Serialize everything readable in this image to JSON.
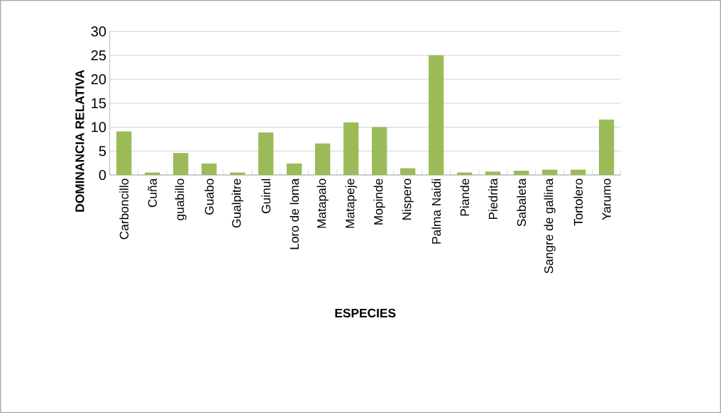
{
  "chart_data": {
    "type": "bar",
    "xlabel": "ESPECIES",
    "ylabel": "DOMINANCIA RELATIVA",
    "categories": [
      "Carboncillo",
      "Cuña",
      "guabillo",
      "Guabo",
      "Gualpitre",
      "Guinul",
      "Loro de loma",
      "Matapalo",
      "Matapeje",
      "Mopinde",
      "Nispero",
      "Palma Naidi",
      "Piande",
      "Piedrita",
      "Sabaleta",
      "Sangre de gallina",
      "Tortolero",
      "Yarumo"
    ],
    "values": [
      9.1,
      0.5,
      4.6,
      2.4,
      0.5,
      8.9,
      2.4,
      6.6,
      11.0,
      10.0,
      1.4,
      25.0,
      0.5,
      0.7,
      0.9,
      1.1,
      1.1,
      11.6
    ],
    "color": "#9bbb59",
    "ylim": [
      0,
      30
    ],
    "yticks": [
      0,
      5,
      10,
      15,
      20,
      25,
      30
    ],
    "grid": "y"
  }
}
